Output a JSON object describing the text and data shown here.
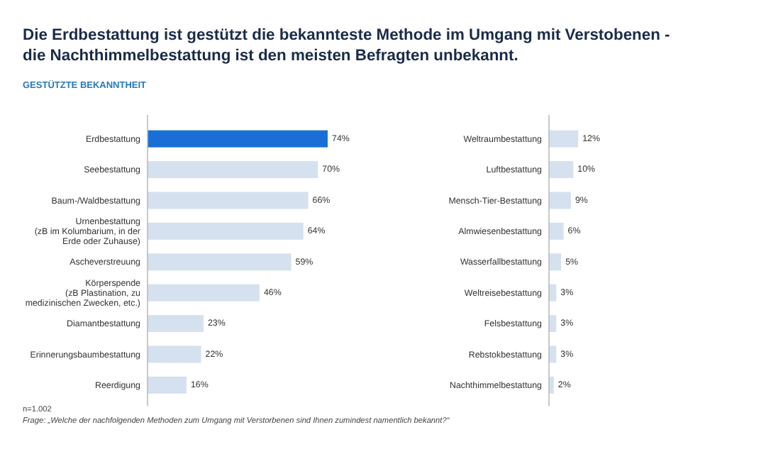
{
  "chart_data": [
    {
      "type": "bar",
      "orientation": "horizontal",
      "title": "Die Erdbestattung ist gestützt die bekannteste Methode im Umgang mit Verstobenen - die Nachthimmelbestattung ist den meisten Befragten unbekannt.",
      "subtitle": "GESTÜTZTE BEKANNTHEIT",
      "annotations": [
        "n=1.002",
        "Frage: „Welche der nachfolgenden Methoden zum Umgang mit Verstorbenen sind Ihnen zumindest namentlich bekannt?“"
      ],
      "categories": [
        "Erdbestattung",
        "Seebestattung",
        "Baum-/Waldbestattung",
        "Urnenbestattung (zB im Kolumbarium, in der Erde oder Zuhause)",
        "Ascheverstreuung",
        "Körperspende (zB Plastination, zu medizinischen Zwecken, etc.)",
        "Diamantbestattung",
        "Erinnerungsbaumbestattung",
        "Reerdigung"
      ],
      "values": [
        74,
        70,
        66,
        64,
        59,
        46,
        23,
        22,
        16
      ],
      "value_labels": [
        "74%",
        "70%",
        "66%",
        "64%",
        "59%",
        "46%",
        "23%",
        "22%",
        "16%"
      ],
      "colors": [
        "#1a6fd6",
        "#d5e1ef",
        "#d5e1ef",
        "#d5e1ef",
        "#d5e1ef",
        "#d5e1ef",
        "#d5e1ef",
        "#d5e1ef",
        "#d5e1ef"
      ]
    },
    {
      "type": "bar",
      "orientation": "horizontal",
      "categories": [
        "Weltraumbestattung",
        "Luftbestattung",
        "Mensch-Tier-Bestattung",
        "Almwiesenbestattung",
        "Wasserfallbestattung",
        "Weltreisebestattung",
        "Felsbestattung",
        "Rebstokbestattung",
        "Nachthimmelbestattung"
      ],
      "values": [
        12,
        10,
        9,
        6,
        5,
        3,
        3,
        3,
        2
      ],
      "value_labels": [
        "12%",
        "10%",
        "9%",
        "6%",
        "5%",
        "3%",
        "3%",
        "3%",
        "2%"
      ],
      "colors": [
        "#d5e1ef",
        "#d5e1ef",
        "#d5e1ef",
        "#d5e1ef",
        "#d5e1ef",
        "#d5e1ef",
        "#d5e1ef",
        "#d5e1ef",
        "#d5e1ef"
      ]
    }
  ]
}
